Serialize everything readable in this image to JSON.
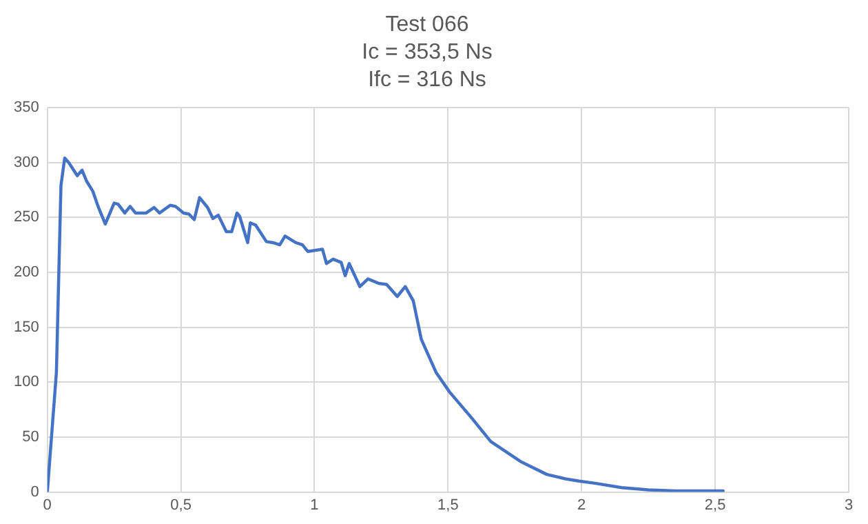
{
  "chart_data": {
    "type": "line",
    "title": [
      "Test 066",
      "Ic = 353,5 Ns",
      "Ifc = 316 Ns"
    ],
    "series": [
      {
        "color": "#4472c4",
        "x": [
          0,
          0.034,
          0.051,
          0.065,
          0.08,
          0.112,
          0.13,
          0.147,
          0.17,
          0.19,
          0.217,
          0.25,
          0.265,
          0.29,
          0.31,
          0.33,
          0.37,
          0.4,
          0.42,
          0.46,
          0.48,
          0.51,
          0.53,
          0.55,
          0.57,
          0.6,
          0.62,
          0.64,
          0.67,
          0.69,
          0.71,
          0.72,
          0.75,
          0.76,
          0.78,
          0.82,
          0.845,
          0.87,
          0.89,
          0.93,
          0.955,
          0.975,
          1.03,
          1.045,
          1.07,
          1.1,
          1.115,
          1.13,
          1.17,
          1.2,
          1.24,
          1.27,
          1.31,
          1.34,
          1.37,
          1.4,
          1.455,
          1.506,
          1.59,
          1.66,
          1.77,
          1.87,
          1.94,
          1.99,
          2.05,
          2.15,
          2.25,
          2.35,
          2.53
        ],
        "values": [
          0,
          109,
          279,
          304,
          300,
          288,
          293,
          283,
          274,
          260,
          244,
          263,
          262,
          254,
          260,
          254,
          254,
          259,
          254,
          261,
          260,
          254,
          253,
          248,
          268,
          259,
          249,
          252,
          237,
          237,
          254,
          251,
          227,
          245,
          243,
          228,
          227,
          225,
          233,
          227,
          225,
          219,
          221,
          208,
          212,
          209,
          197,
          208,
          187,
          194,
          190,
          189,
          178,
          187,
          174,
          139,
          109,
          91,
          67,
          46,
          28,
          16,
          12,
          10,
          8,
          4,
          2,
          1,
          1
        ]
      }
    ],
    "xlim": [
      0,
      3
    ],
    "xticks": [
      {
        "value": 0,
        "label": "0"
      },
      {
        "value": 0.5,
        "label": "0,5"
      },
      {
        "value": 1,
        "label": "1"
      },
      {
        "value": 1.5,
        "label": "1,5"
      },
      {
        "value": 2,
        "label": "2"
      },
      {
        "value": 2.5,
        "label": "2,5"
      },
      {
        "value": 3,
        "label": "3"
      }
    ],
    "ylim": [
      0,
      350
    ],
    "yticks": [
      0,
      50,
      100,
      150,
      200,
      250,
      300,
      350
    ],
    "grid": true,
    "legend": false,
    "marker": "none",
    "line_style": "solid"
  }
}
